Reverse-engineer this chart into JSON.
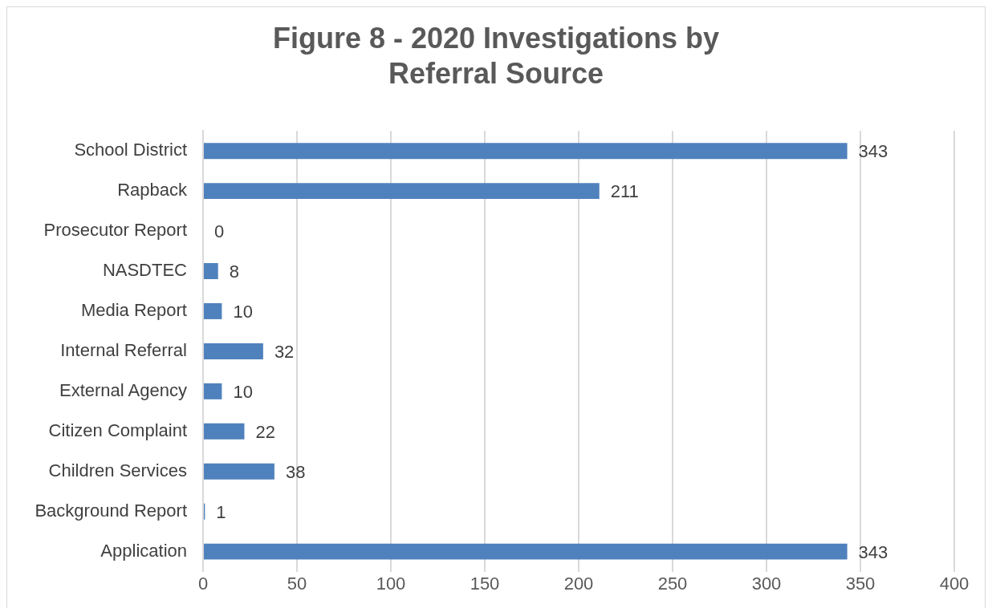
{
  "chart_data": {
    "type": "bar",
    "orientation": "horizontal",
    "title": "Figure 8 - 2020 Investigations by Referral Source",
    "categories": [
      "School District",
      "Rapback",
      "Prosecutor Report",
      "NASDTEC",
      "Media Report",
      "Internal Referral",
      "External Agency",
      "Citizen Complaint",
      "Children Services",
      "Background Report",
      "Application"
    ],
    "values": [
      343,
      211,
      0,
      8,
      10,
      32,
      10,
      22,
      38,
      1,
      343
    ],
    "color": "#4f81bd",
    "xlim": [
      0,
      400
    ],
    "xticks": [
      0,
      50,
      100,
      150,
      200,
      250,
      300,
      350,
      400
    ],
    "grid": "x",
    "data_labels": true,
    "legend": false
  }
}
